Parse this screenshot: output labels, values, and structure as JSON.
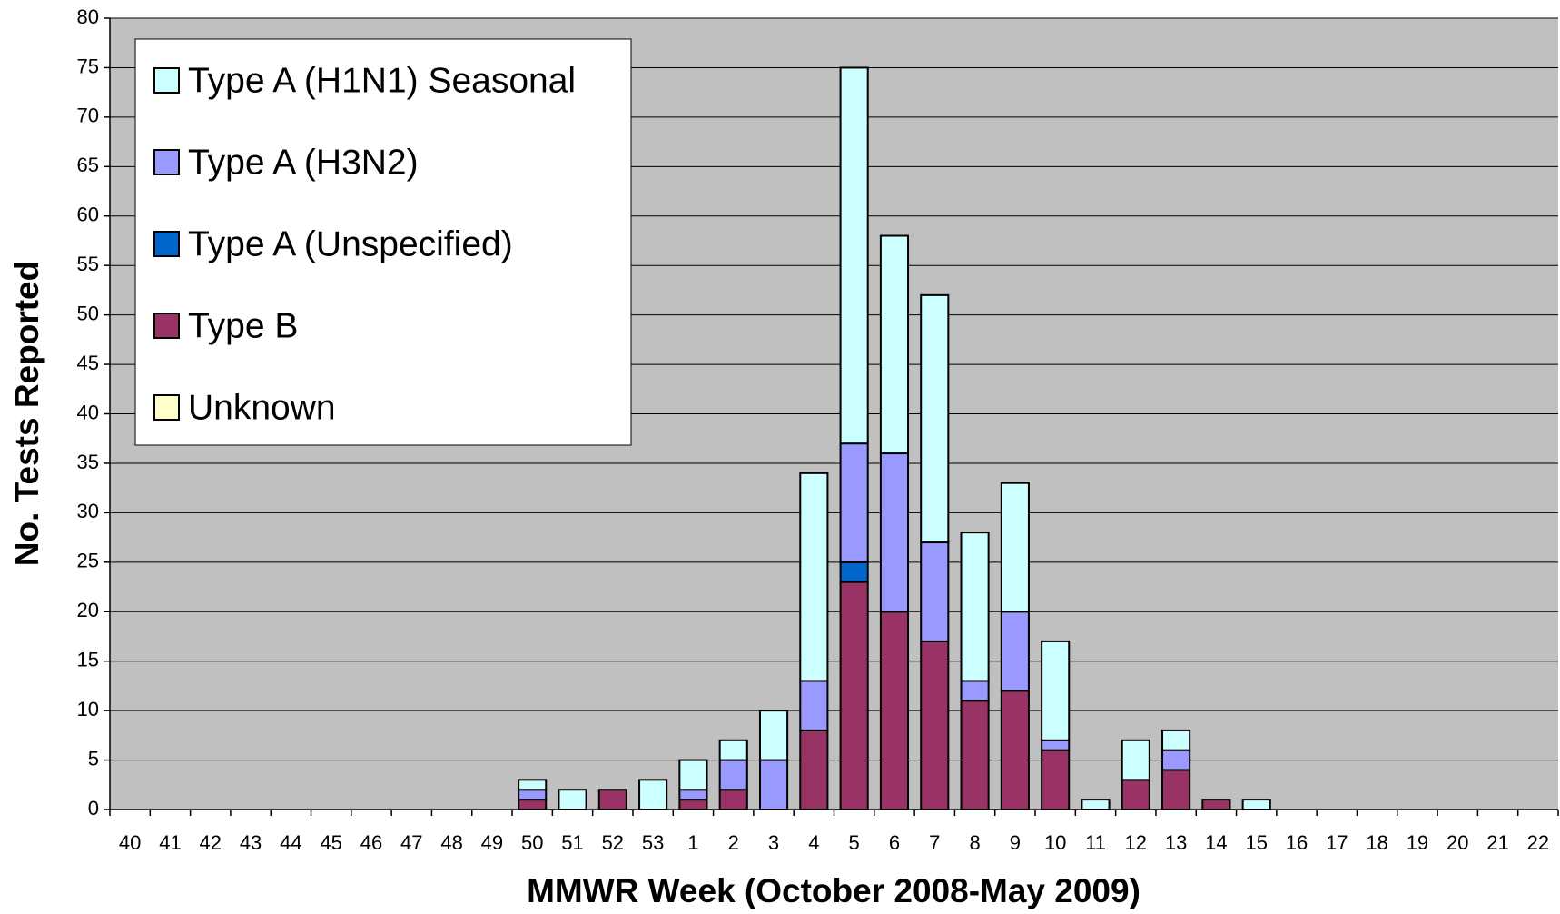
{
  "chart_data": {
    "type": "stacked_bar",
    "xlabel": "MMWR Week (October 2008-May 2009)",
    "ylabel": "No. Tests Reported",
    "categories": [
      "40",
      "41",
      "42",
      "43",
      "44",
      "45",
      "46",
      "47",
      "48",
      "49",
      "50",
      "51",
      "52",
      "53",
      "1",
      "2",
      "3",
      "4",
      "5",
      "6",
      "7",
      "8",
      "9",
      "10",
      "11",
      "12",
      "13",
      "14",
      "15",
      "16",
      "17",
      "18",
      "19",
      "20",
      "21",
      "22"
    ],
    "series": [
      {
        "name": "Type A (H1N1) Seasonal",
        "color": "#ccffff",
        "values": [
          0,
          0,
          0,
          0,
          0,
          0,
          0,
          0,
          0,
          0,
          1,
          2,
          0,
          3,
          3,
          2,
          5,
          21,
          38,
          22,
          25,
          15,
          13,
          10,
          1,
          4,
          2,
          0,
          1,
          0,
          0,
          0,
          0,
          0,
          0,
          0
        ]
      },
      {
        "name": "Type A (H3N2)",
        "color": "#9999ff",
        "values": [
          0,
          0,
          0,
          0,
          0,
          0,
          0,
          0,
          0,
          0,
          1,
          0,
          0,
          0,
          1,
          3,
          5,
          5,
          12,
          16,
          10,
          2,
          8,
          1,
          0,
          0,
          2,
          0,
          0,
          0,
          0,
          0,
          0,
          0,
          0,
          0
        ]
      },
      {
        "name": "Type A (Unspecified)",
        "color": "#0066cc",
        "values": [
          0,
          0,
          0,
          0,
          0,
          0,
          0,
          0,
          0,
          0,
          0,
          0,
          0,
          0,
          0,
          0,
          0,
          0,
          2,
          0,
          0,
          0,
          0,
          0,
          0,
          0,
          0,
          0,
          0,
          0,
          0,
          0,
          0,
          0,
          0,
          0
        ]
      },
      {
        "name": "Type B",
        "color": "#993366",
        "values": [
          0,
          0,
          0,
          0,
          0,
          0,
          0,
          0,
          0,
          0,
          1,
          0,
          2,
          0,
          1,
          2,
          0,
          8,
          23,
          20,
          17,
          11,
          12,
          6,
          0,
          3,
          4,
          1,
          0,
          0,
          0,
          0,
          0,
          0,
          0,
          0
        ]
      },
      {
        "name": "Unknown",
        "color": "#ffffcc",
        "values": [
          0,
          0,
          0,
          0,
          0,
          0,
          0,
          0,
          0,
          0,
          0,
          0,
          0,
          0,
          0,
          0,
          0,
          0,
          0,
          0,
          0,
          0,
          0,
          0,
          0,
          0,
          0,
          0,
          0,
          0,
          0,
          0,
          0,
          0,
          0,
          0
        ]
      }
    ],
    "ylim": [
      0,
      80
    ],
    "yticks": [
      0,
      5,
      10,
      15,
      20,
      25,
      30,
      35,
      40,
      45,
      50,
      55,
      60,
      65,
      70,
      75,
      80
    ],
    "grid": true,
    "legend": "upper left",
    "background": "#c0c0c0"
  }
}
